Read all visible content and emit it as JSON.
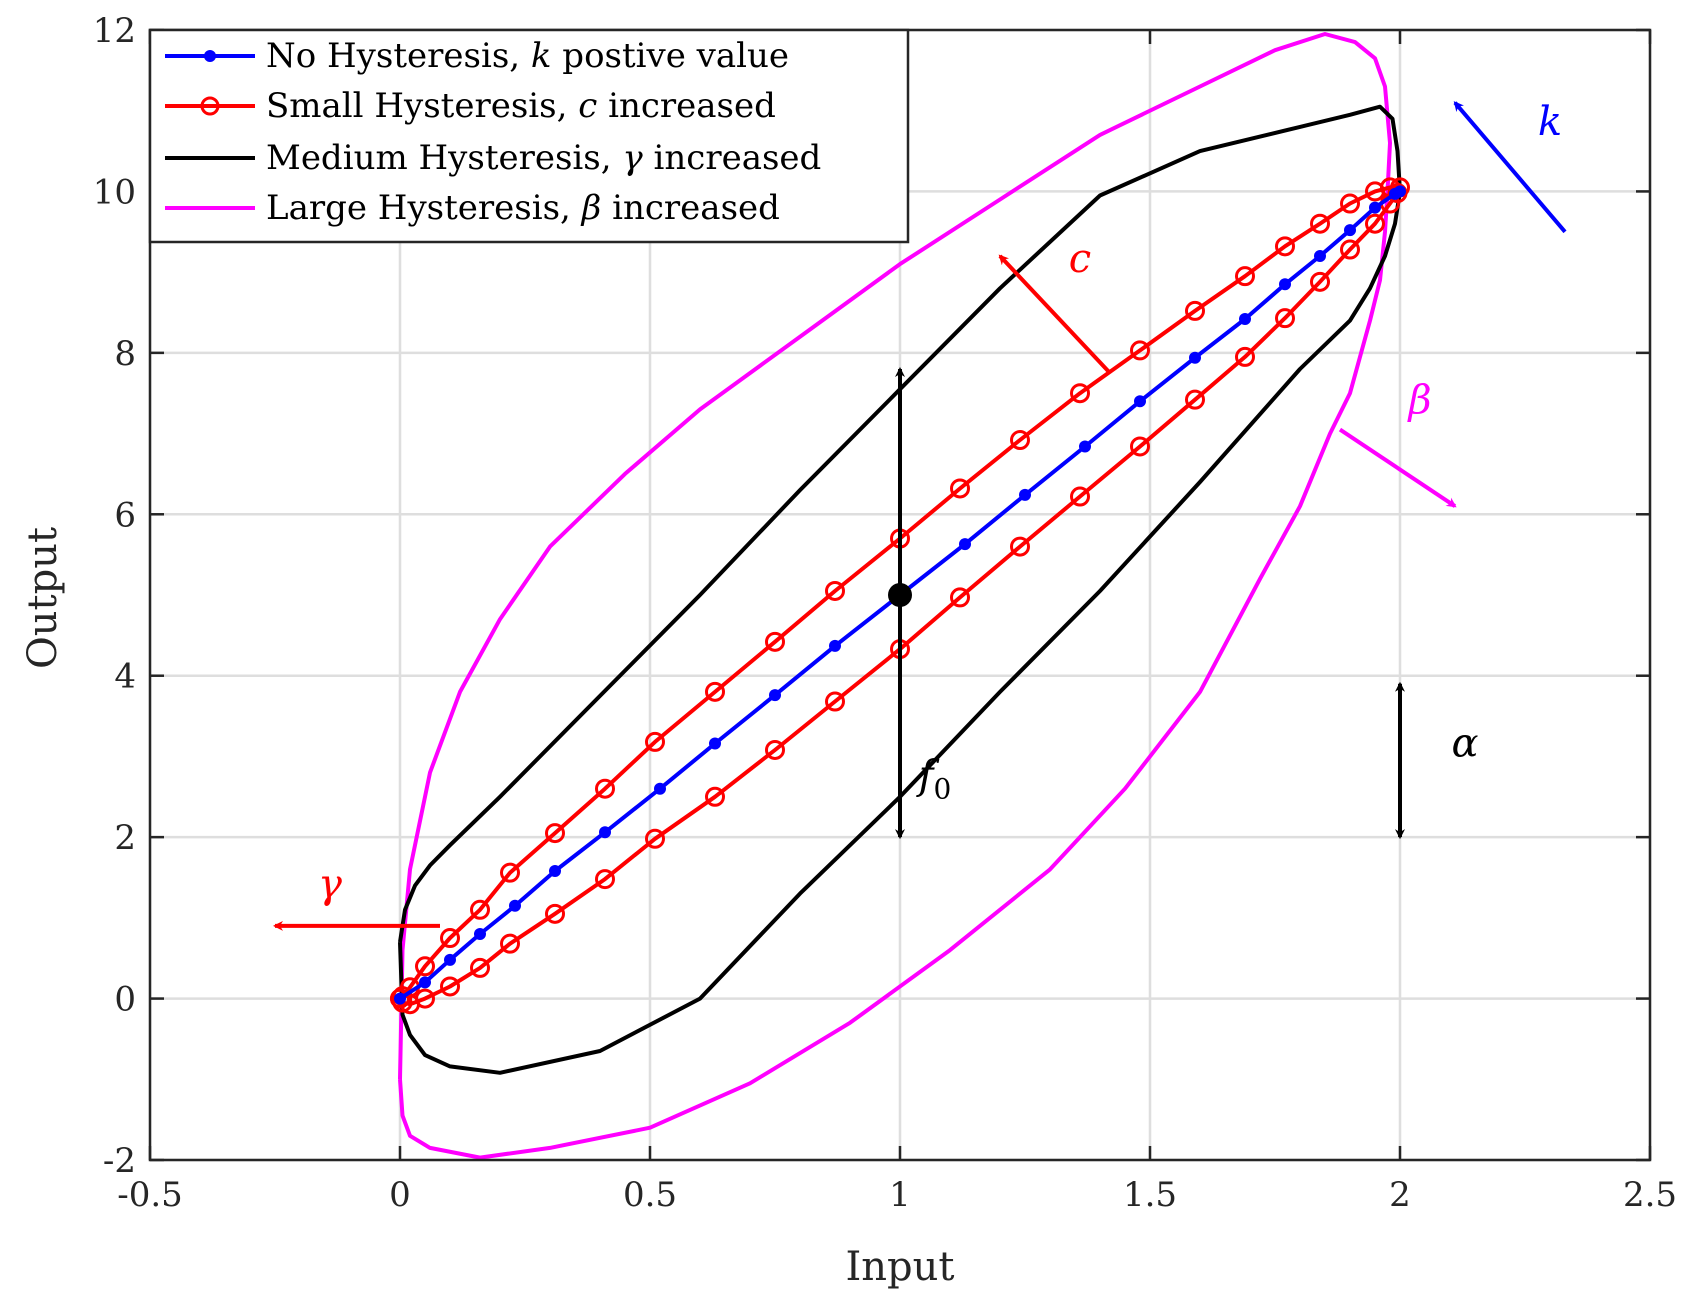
{
  "chart_data": {
    "type": "line",
    "xlabel": "Input",
    "ylabel": "Output",
    "xlim": [
      -0.5,
      2.5
    ],
    "ylim": [
      -2,
      12
    ],
    "xticks": [
      -0.5,
      0,
      0.5,
      1,
      1.5,
      2,
      2.5
    ],
    "xtick_labels": [
      "-0.5",
      "0",
      "0.5",
      "1",
      "1.5",
      "2",
      "2.5"
    ],
    "yticks": [
      -2,
      0,
      2,
      4,
      6,
      8,
      10,
      12
    ],
    "ytick_labels": [
      "-2",
      "0",
      "2",
      "4",
      "6",
      "8",
      "10",
      "12"
    ],
    "grid": true,
    "legend_position": "top-left",
    "series": [
      {
        "name": "No Hysteresis, k postive value",
        "legend_label": "No Hysteresis, ",
        "legend_italic": "k",
        "legend_suffix": " postive value",
        "color": "#0000ff",
        "marker": "filled-circle",
        "x": [
          0.0,
          0.05,
          0.1,
          0.16,
          0.23,
          0.31,
          0.41,
          0.52,
          0.63,
          0.75,
          0.87,
          1.0,
          1.13,
          1.25,
          1.37,
          1.48,
          1.59,
          1.69,
          1.77,
          1.84,
          1.9,
          1.95,
          1.99,
          2.0
        ],
        "y": [
          0.0,
          0.2,
          0.48,
          0.8,
          1.15,
          1.58,
          2.06,
          2.6,
          3.16,
          3.76,
          4.37,
          5.0,
          5.63,
          6.24,
          6.84,
          7.4,
          7.94,
          8.42,
          8.85,
          9.2,
          9.52,
          9.8,
          9.97,
          10.0
        ]
      },
      {
        "name": "Small Hysteresis, c increased",
        "legend_label": "Small Hysteresis, ",
        "legend_italic": "c",
        "legend_suffix": " increased",
        "color": "#ff0000",
        "marker": "open-circle",
        "x": [
          0.0,
          0.005,
          0.02,
          0.05,
          0.1,
          0.16,
          0.22,
          0.31,
          0.41,
          0.51,
          0.63,
          0.75,
          0.87,
          1.0,
          1.12,
          1.24,
          1.36,
          1.48,
          1.59,
          1.69,
          1.77,
          1.84,
          1.9,
          1.95,
          1.98,
          2.0,
          1.995,
          1.98,
          1.95,
          1.9,
          1.84,
          1.77,
          1.69,
          1.59,
          1.48,
          1.36,
          1.24,
          1.12,
          1.0,
          0.87,
          0.75,
          0.63,
          0.51,
          0.41,
          0.31,
          0.22,
          0.16,
          0.1,
          0.05,
          0.02,
          0.005,
          0.0
        ],
        "y": [
          0.0,
          0.03,
          0.14,
          0.4,
          0.75,
          1.1,
          1.56,
          2.05,
          2.6,
          3.18,
          3.8,
          4.42,
          5.05,
          5.7,
          6.32,
          6.92,
          7.5,
          8.03,
          8.52,
          8.95,
          9.32,
          9.6,
          9.85,
          10.0,
          10.05,
          10.05,
          9.98,
          9.85,
          9.6,
          9.28,
          8.88,
          8.43,
          7.95,
          7.42,
          6.84,
          6.22,
          5.6,
          4.97,
          4.33,
          3.68,
          3.08,
          2.5,
          1.98,
          1.48,
          1.05,
          0.68,
          0.38,
          0.15,
          0.0,
          -0.07,
          -0.05,
          0.0
        ]
      },
      {
        "name": "Medium Hysteresis, γ increased",
        "legend_label": "Medium Hysteresis, ",
        "legend_italic": "γ",
        "legend_suffix": " increased",
        "color": "#000000",
        "marker": "none",
        "x": [
          0.0,
          0.01,
          0.03,
          0.06,
          0.1,
          0.2,
          0.4,
          0.6,
          0.8,
          1.0,
          1.2,
          1.4,
          1.6,
          1.8,
          1.9,
          1.96,
          1.985,
          1.995,
          2.0,
          1.99,
          1.97,
          1.94,
          1.9,
          1.8,
          1.6,
          1.4,
          1.2,
          1.0,
          0.8,
          0.6,
          0.4,
          0.2,
          0.1,
          0.05,
          0.02,
          0.005,
          0.0
        ],
        "y": [
          0.7,
          1.1,
          1.4,
          1.65,
          1.9,
          2.5,
          3.75,
          5.0,
          6.3,
          7.55,
          8.8,
          9.95,
          10.5,
          10.8,
          10.95,
          11.05,
          10.9,
          10.5,
          10.0,
          9.6,
          9.2,
          8.8,
          8.4,
          7.8,
          6.4,
          5.05,
          3.8,
          2.5,
          1.3,
          0.0,
          -0.65,
          -0.92,
          -0.84,
          -0.7,
          -0.45,
          -0.2,
          0.7
        ]
      },
      {
        "name": "Large Hysteresis, β increased",
        "legend_label": "Large Hysteresis, ",
        "legend_italic": "β",
        "legend_suffix": " increased",
        "color": "#ff00ff",
        "marker": "none",
        "x": [
          0.0,
          0.005,
          0.02,
          0.06,
          0.12,
          0.2,
          0.3,
          0.45,
          0.6,
          0.8,
          1.0,
          1.2,
          1.4,
          1.6,
          1.75,
          1.85,
          1.91,
          1.95,
          1.97,
          1.98,
          1.975,
          1.97,
          1.96,
          1.94,
          1.9,
          1.86,
          1.8,
          1.72,
          1.6,
          1.45,
          1.3,
          1.1,
          0.9,
          0.7,
          0.5,
          0.3,
          0.16,
          0.06,
          0.02,
          0.005,
          0.0
        ],
        "y": [
          -1.0,
          0.6,
          1.6,
          2.8,
          3.8,
          4.7,
          5.6,
          6.5,
          7.3,
          8.2,
          9.1,
          9.9,
          10.7,
          11.3,
          11.75,
          11.95,
          11.85,
          11.65,
          11.3,
          10.6,
          10.0,
          9.5,
          8.9,
          8.4,
          7.5,
          7.0,
          6.1,
          5.2,
          3.8,
          2.6,
          1.6,
          0.6,
          -0.3,
          -1.05,
          -1.6,
          -1.85,
          -1.97,
          -1.85,
          -1.7,
          -1.45,
          -1.0
        ]
      }
    ],
    "center_point": {
      "x": 1.0,
      "y": 5.0,
      "color": "#000000"
    },
    "annotations": [
      {
        "label": "f",
        "subscript": "0",
        "color": "#000000",
        "kind": "double-arrow",
        "x": 1.0,
        "y_from": 2.0,
        "y_to": 7.8,
        "label_x": 1.07,
        "label_y": 2.6
      },
      {
        "label": "α",
        "subscript": "",
        "color": "#000000",
        "kind": "double-arrow",
        "x": 2.0,
        "y_from": 2.0,
        "y_to": 3.9,
        "label_x": 2.13,
        "label_y": 3.0
      },
      {
        "label": "k",
        "subscript": "",
        "color": "#0000ff",
        "kind": "arrow",
        "x_from": 2.33,
        "y_from": 9.5,
        "x_to": 2.11,
        "y_to": 11.1,
        "label_x": 2.3,
        "label_y": 10.7
      },
      {
        "label": "c",
        "subscript": "",
        "color": "#ff0000",
        "kind": "arrow",
        "x_from": 1.42,
        "y_from": 7.75,
        "x_to": 1.2,
        "y_to": 9.2,
        "label_x": 1.36,
        "label_y": 9.0
      },
      {
        "label": "β",
        "subscript": "",
        "color": "#ff00ff",
        "kind": "arrow",
        "x_from": 1.88,
        "y_from": 7.05,
        "x_to": 2.11,
        "y_to": 6.1,
        "label_x": 2.04,
        "label_y": 7.25
      },
      {
        "label": "γ",
        "subscript": "",
        "color": "#ff0000",
        "kind": "arrow",
        "x_from": 0.08,
        "y_from": 0.9,
        "x_to": -0.25,
        "y_to": 0.9,
        "label_x": -0.14,
        "label_y": 1.25
      }
    ]
  }
}
